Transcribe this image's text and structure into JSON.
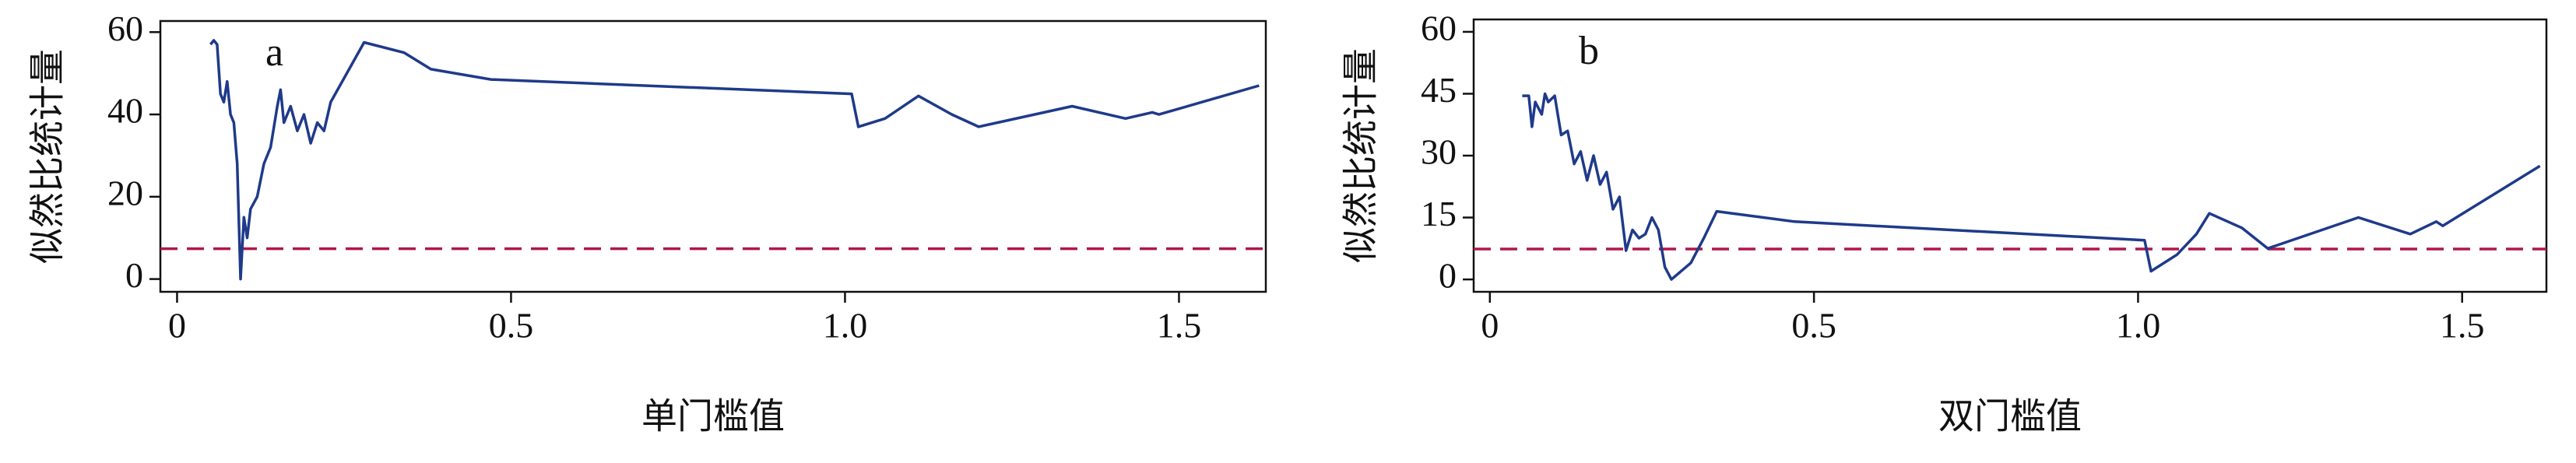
{
  "chart_data": [
    {
      "type": "line",
      "panel_label": "a",
      "y_label": "似然比统计量",
      "x_label": "单门槛值",
      "xlim": [
        -0.025,
        1.63
      ],
      "ylim": [
        -3.1,
        62.7
      ],
      "xticks": [
        0,
        0.5,
        {
          "value": 1,
          "label": "1.0"
        },
        1.5
      ],
      "yticks": [
        0,
        20,
        40,
        60
      ],
      "reference_line": {
        "value": 7.36,
        "color": "#b0174a"
      },
      "series": [
        {
          "color": "#1f3a8a",
          "x": [
            0.05,
            0.055,
            0.06,
            0.065,
            0.07,
            0.075,
            0.08,
            0.085,
            0.09,
            0.095,
            0.1,
            0.105,
            0.11,
            0.12,
            0.13,
            0.14,
            0.15,
            0.155,
            0.16,
            0.17,
            0.18,
            0.19,
            0.2,
            0.21,
            0.22,
            0.23,
            0.28,
            0.34,
            0.38,
            0.47,
            1.01,
            1.02,
            1.06,
            1.11,
            1.16,
            1.2,
            1.34,
            1.42,
            1.46,
            1.47,
            1.62
          ],
          "values": [
            57,
            58,
            57,
            45,
            43,
            48,
            40,
            38,
            28,
            0,
            15,
            10,
            17,
            20,
            28,
            32,
            42,
            46,
            38,
            42,
            36,
            40,
            33,
            38,
            36,
            43,
            57.5,
            55,
            51,
            48.5,
            45,
            37,
            39,
            44.5,
            40,
            37,
            42,
            39,
            40.5,
            40,
            47
          ]
        }
      ]
    },
    {
      "type": "line",
      "panel_label": "b",
      "y_label": "似然比统计量",
      "x_label": "双门槛值",
      "xlim": [
        -0.025,
        1.63
      ],
      "ylim": [
        -3,
        63
      ],
      "xticks": [
        0,
        0.5,
        {
          "value": 1,
          "label": "1.0"
        },
        1.5
      ],
      "yticks": [
        0,
        15,
        30,
        45,
        60
      ],
      "reference_line": {
        "value": 7.36,
        "color": "#b0174a"
      },
      "series": [
        {
          "color": "#1f3a8a",
          "x": [
            0.05,
            0.06,
            0.065,
            0.07,
            0.08,
            0.085,
            0.09,
            0.1,
            0.11,
            0.12,
            0.13,
            0.14,
            0.15,
            0.16,
            0.17,
            0.18,
            0.19,
            0.2,
            0.21,
            0.22,
            0.23,
            0.24,
            0.25,
            0.26,
            0.27,
            0.28,
            0.31,
            0.33,
            0.35,
            0.47,
            1.01,
            1.02,
            1.06,
            1.09,
            1.11,
            1.16,
            1.2,
            1.34,
            1.42,
            1.46,
            1.47,
            1.62
          ],
          "values": [
            44.5,
            44.5,
            37,
            43,
            40,
            45,
            43,
            44.5,
            35,
            36,
            28,
            31,
            24,
            30,
            23,
            26,
            17,
            20,
            7,
            12,
            10,
            11,
            15,
            12,
            3,
            0,
            4,
            10,
            16.5,
            14,
            9.5,
            2,
            6,
            11,
            16,
            12.5,
            7.5,
            15,
            11,
            14,
            13,
            27.5
          ]
        }
      ]
    }
  ]
}
